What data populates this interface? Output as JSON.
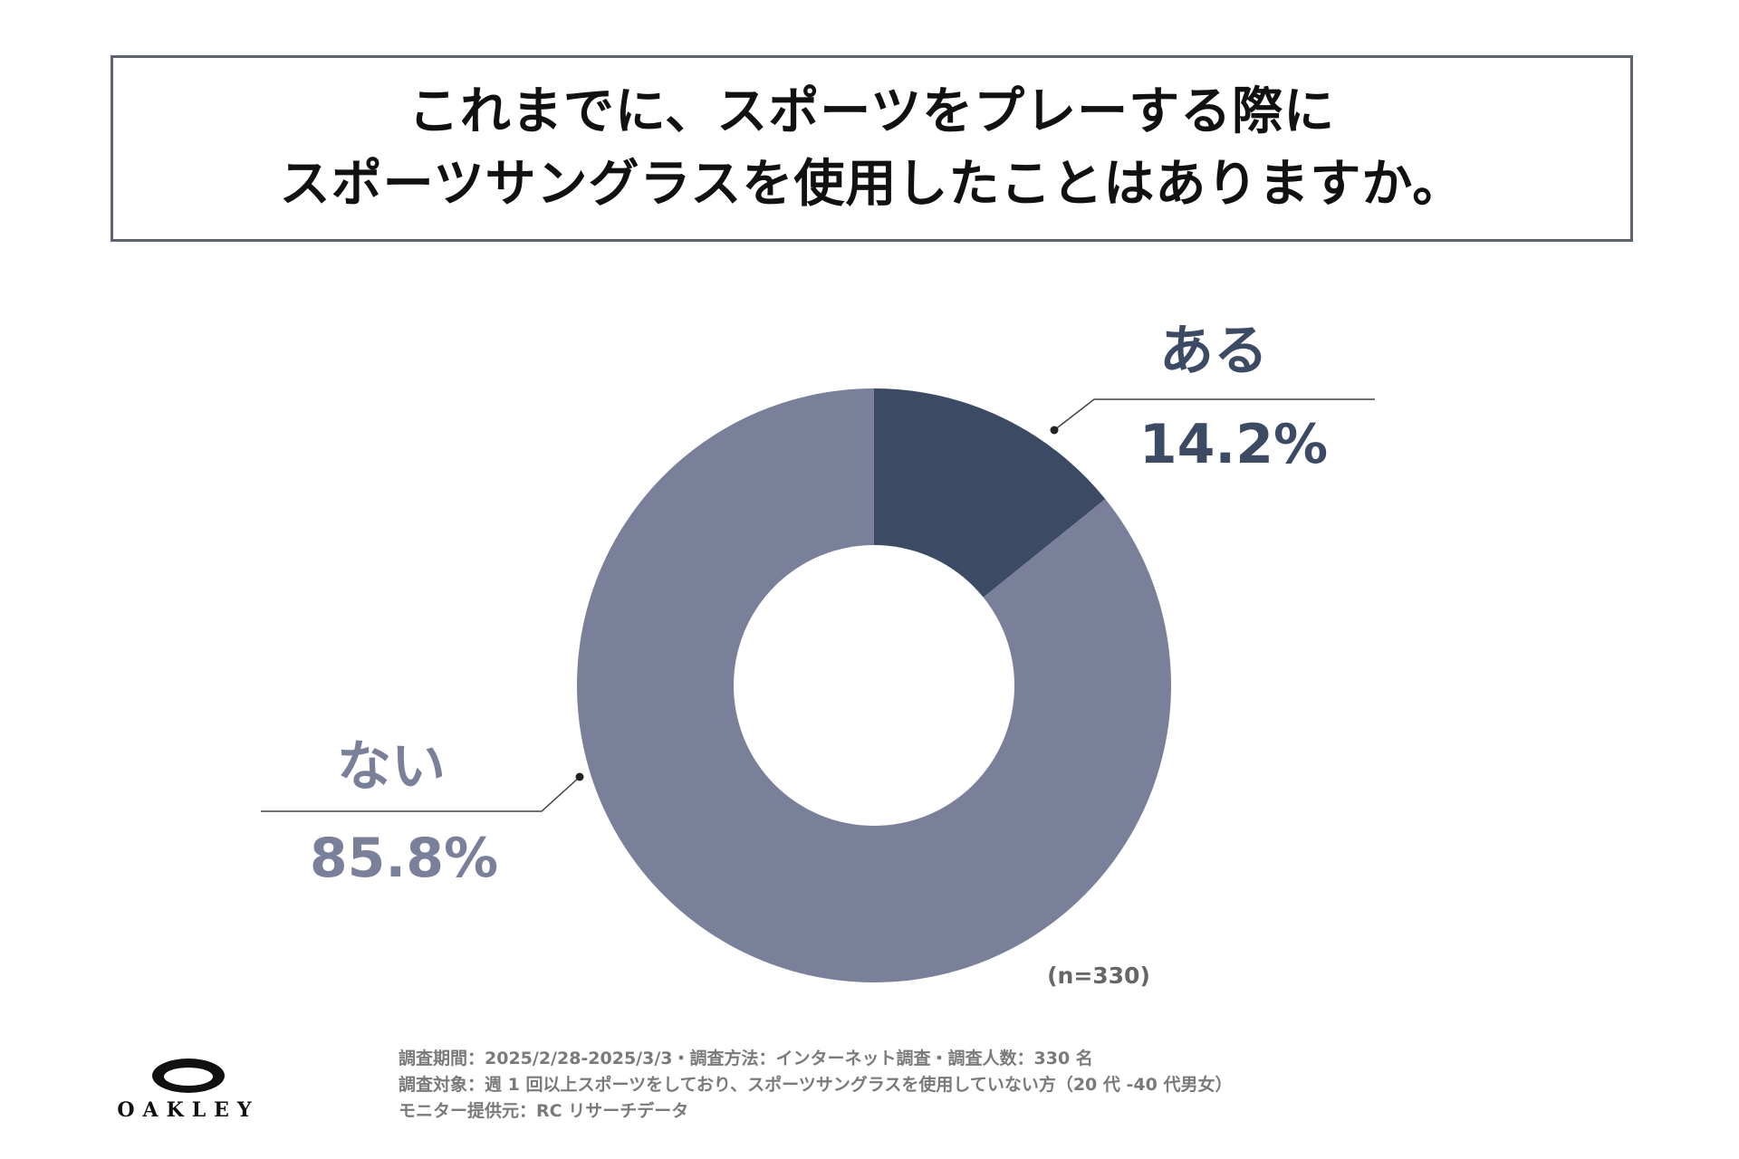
{
  "title": {
    "line1": "これまでに、スポーツをプレーする際に",
    "line2": "スポーツサングラスを使用したことはありますか。"
  },
  "chart_data": {
    "type": "pie",
    "variant": "donut",
    "categories": [
      "ある",
      "ない"
    ],
    "values": [
      14.2,
      85.8
    ],
    "value_labels": [
      "14.2%",
      "85.8%"
    ],
    "colors": [
      "#3c4a63",
      "#7a7f9a"
    ],
    "sample_size": "(n=330)"
  },
  "footnote": {
    "line1": "調査期間：2025/2/28-2025/3/3・調査方法：インターネット調査・調査人数：330 名",
    "line2": "調査対象：週 1 回以上スポーツをしており、スポーツサングラスを使用していない方（20 代 -40 代男女）",
    "line3": "モニター提供元：RC リサーチデータ"
  },
  "logo": {
    "text": "OAKLEY"
  }
}
